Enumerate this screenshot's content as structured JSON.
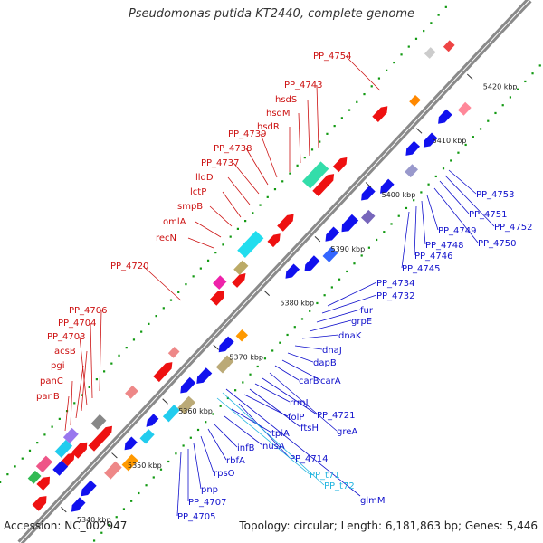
{
  "title": "Pseudomonas putida KT2440, complete genome",
  "footer": {
    "accession": "Accession: NC_002947",
    "summary": "Topology: circular; Length: 6,181,863 bp; Genes: 5,446"
  },
  "colors": {
    "forward_label": "#cc1111",
    "reverse_label": "#1111cc",
    "rna_label": "#22b5e0",
    "backbone": "#999999",
    "dots": "#119911",
    "forward_gene": "#ee1111",
    "reverse_gene": "#1111ee"
  },
  "ticks": [
    "5340 kbp",
    "5350 kbp",
    "5360 kbp",
    "5370 kbp",
    "5380 kbp",
    "5390 kbp",
    "5400 kbp",
    "5410 kbp",
    "5420 kbp"
  ],
  "labels_forward": [
    "panB",
    "panC",
    "pgi",
    "acsB",
    "PP_4703",
    "PP_4704",
    "PP_4706",
    "PP_4720",
    "recN",
    "omlA",
    "smpB",
    "lctP",
    "lldD",
    "PP_4737",
    "PP_4738",
    "PP_4739",
    "hsdR",
    "hsdM",
    "hsdS",
    "PP_4743",
    "PP_4754"
  ],
  "labels_reverse": [
    "PP_4705",
    "PP_4707",
    "pnp",
    "rpsO",
    "rbfA",
    "infB",
    "nusA",
    "tpiA",
    "PP_4714",
    "folP",
    "ftsH",
    "rrmJ",
    "PP_4721",
    "greA",
    "carB",
    "carA",
    "dapB",
    "dnaJ",
    "dnaK",
    "grpE",
    "fur",
    "PP_4732",
    "PP_4734",
    "PP_4745",
    "PP_4746",
    "PP_4748",
    "PP_4749",
    "PP_4750",
    "PP_4751",
    "PP_4752",
    "PP_4753"
  ],
  "labels_rna": [
    "PP_t71",
    "PP_t72"
  ],
  "label_rna_extra": "glmM"
}
